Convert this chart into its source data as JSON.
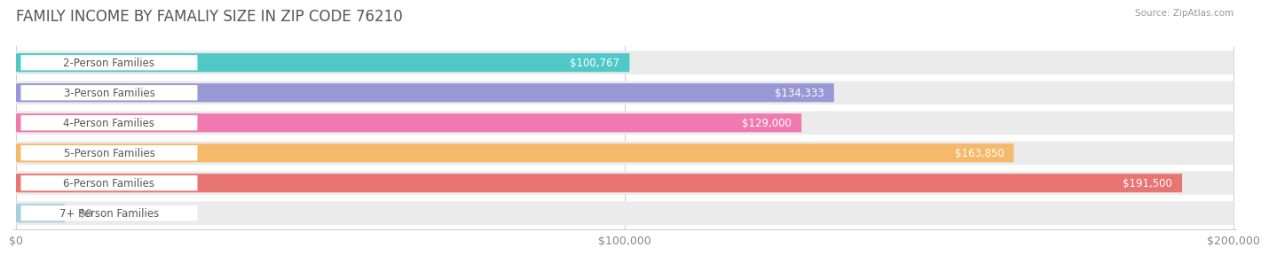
{
  "title": "FAMILY INCOME BY FAMALIY SIZE IN ZIP CODE 76210",
  "source": "Source: ZipAtlas.com",
  "categories": [
    "2-Person Families",
    "3-Person Families",
    "4-Person Families",
    "5-Person Families",
    "6-Person Families",
    "7+ Person Families"
  ],
  "values": [
    100767,
    134333,
    129000,
    163850,
    191500,
    0
  ],
  "bar_colors": [
    "#50c8c8",
    "#9898d4",
    "#f07ab0",
    "#f5b96b",
    "#e87572",
    "#a8cfe0"
  ],
  "bar_bg_color": "#ebebeb",
  "label_text_color": "#555555",
  "value_text_color": "#ffffff",
  "zero_value_text_color": "#888888",
  "title_color": "#555555",
  "source_color": "#999999",
  "x_max": 200000,
  "x_ticks": [
    0,
    100000,
    200000
  ],
  "x_tick_labels": [
    "$0",
    "$100,000",
    "$200,000"
  ],
  "title_fontsize": 12,
  "label_fontsize": 8.5,
  "value_fontsize": 8.5,
  "tick_fontsize": 9,
  "zero_stub_value": 8000
}
